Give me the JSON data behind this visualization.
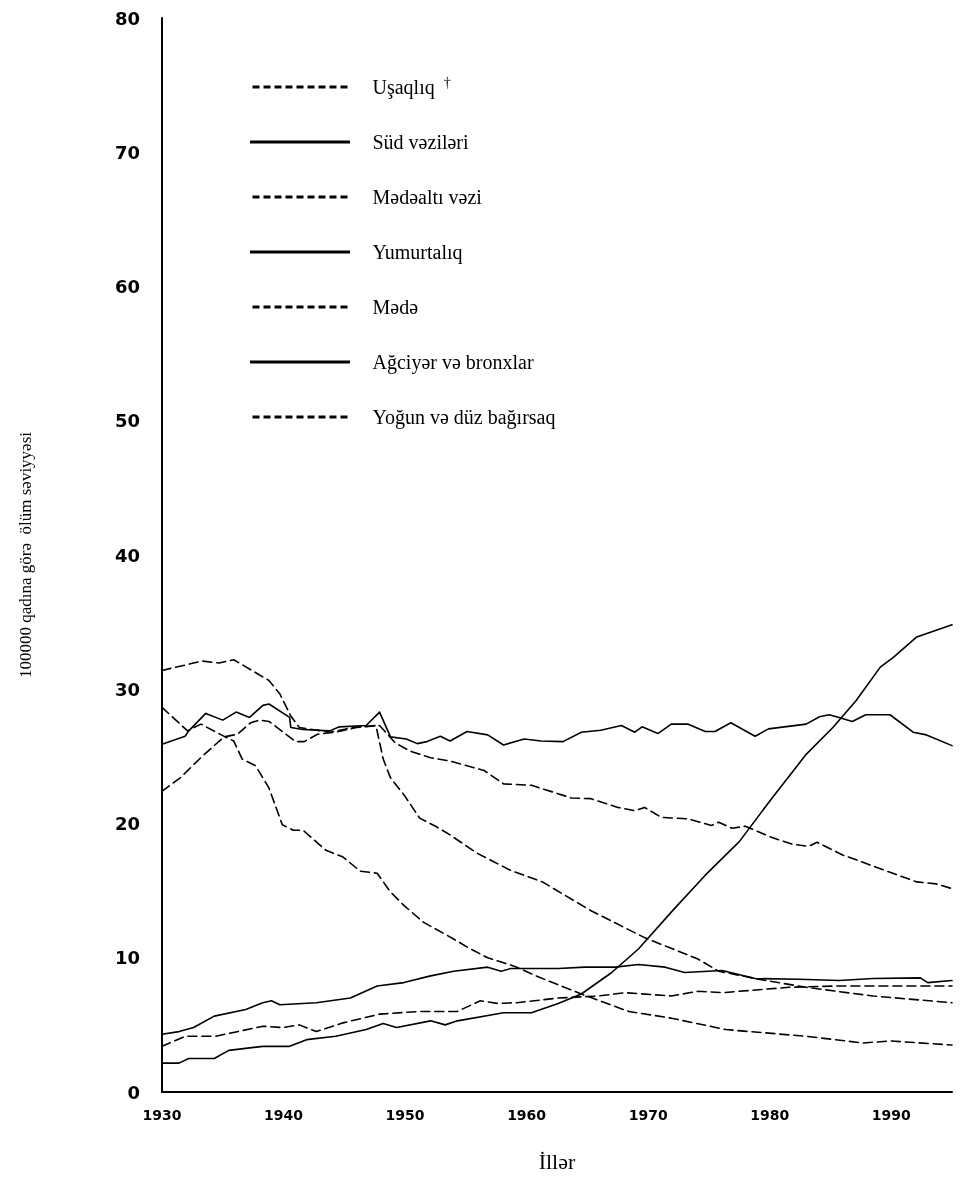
{
  "chart_data": {
    "type": "line",
    "xlabel": "İllər",
    "ylabel": "100000 qadına görə  ölüm səviyyəsi",
    "xlim": [
      1930,
      1995
    ],
    "xticks": [
      1930,
      1940,
      1950,
      1960,
      1970,
      1980,
      1990
    ],
    "ylim": [
      0,
      80
    ],
    "yticks": [
      0,
      10,
      20,
      30,
      40,
      50,
      60,
      70,
      80
    ],
    "grid": false,
    "legend": "top left",
    "marker": "none",
    "series": [
      {
        "name": "Uşaqlıq $^{†}$",
        "color": "#000000",
        "line_style": "dashed",
        "x": [
          1930,
          1933.3,
          1934.7,
          1935.9,
          1938.8,
          1939.7,
          1940.6,
          1941.3,
          1943.8,
          1945.7,
          1947.6,
          1948.2,
          1948.8,
          1949.9,
          1951.2,
          1952.5,
          1953.7,
          1955.9,
          1958.7,
          1961.3,
          1965.3,
          1969.7,
          1974.1,
          1975.8,
          1979.1,
          1983,
          1988.5,
          1995
        ],
        "values": [
          31.4,
          32.1,
          31.95,
          32.2,
          30.65,
          29.65,
          28,
          27.15,
          26.8,
          27.15,
          27.3,
          24.8,
          23.4,
          22.15,
          20.4,
          19.8,
          19.15,
          17.8,
          16.5,
          15.65,
          13.5,
          11.5,
          9.9,
          9,
          8.4,
          7.8,
          7.15,
          6.65
        ]
      },
      {
        "name": "Süd vəziləri",
        "color": "#000000",
        "line_style": "solid",
        "x": [
          1930,
          1931.9,
          1932.2,
          1933.6,
          1935,
          1936.1,
          1937.2,
          1938.3,
          1938.8,
          1940.5,
          1940.6,
          1941.6,
          1943.8,
          1944.6,
          1946.8,
          1947.9,
          1948.8,
          1950.1,
          1951,
          1951.8,
          1952.9,
          1953.7,
          1955.1,
          1956.8,
          1958.1,
          1959.8,
          1961.2,
          1963,
          1964.5,
          1966.1,
          1967.8,
          1968.9,
          1969.5,
          1970.8,
          1971.9,
          1973.3,
          1974.7,
          1975.5,
          1976.8,
          1978.8,
          1979.9,
          1983,
          1984.1,
          1984.9,
          1985.7,
          1986.8,
          1987.9,
          1989.9,
          1991.8,
          1992.9,
          1995
        ],
        "values": [
          25.9,
          26.5,
          26.9,
          28.2,
          27.7,
          28.3,
          27.9,
          28.8,
          28.9,
          27.9,
          27.15,
          27,
          26.9,
          27.2,
          27.3,
          28.3,
          26.45,
          26.3,
          25.95,
          26.1,
          26.5,
          26.15,
          26.85,
          26.6,
          25.85,
          26.3,
          26.15,
          26.1,
          26.8,
          26.95,
          27.3,
          26.8,
          27.2,
          26.7,
          27.4,
          27.4,
          26.85,
          26.85,
          27.5,
          26.5,
          27.05,
          27.4,
          27.95,
          28.1,
          27.9,
          27.6,
          28.1,
          28.1,
          26.8,
          26.6,
          25.8
        ]
      },
      {
        "name": "Mədəaltı vəzi",
        "color": "#000000",
        "line_style": "dashed",
        "x": [
          1930,
          1931.9,
          1934.4,
          1938.3,
          1939.9,
          1941.3,
          1942.7,
          1944.9,
          1947.9,
          1951.2,
          1952.6,
          1954.3,
          1956.2,
          1957.6,
          1959.2,
          1962.6,
          1965.9,
          1968.1,
          1971.9,
          1974.1,
          1976.1,
          1981.6,
          1985.7,
          1995
        ],
        "values": [
          3.4,
          4.15,
          4.15,
          4.9,
          4.8,
          5,
          4.5,
          5.15,
          5.8,
          6,
          6,
          6,
          6.8,
          6.6,
          6.65,
          7,
          7.15,
          7.4,
          7.15,
          7.5,
          7.4,
          7.8,
          7.9,
          7.9
        ]
      },
      {
        "name": "Yumurtalıq",
        "color": "#000000",
        "line_style": "solid",
        "x": [
          1930,
          1931.4,
          1932.6,
          1934.3,
          1936.9,
          1938.3,
          1939,
          1939.7,
          1942.7,
          1945.5,
          1947.7,
          1949.9,
          1952.1,
          1954,
          1956.8,
          1957.9,
          1958.7,
          1962.6,
          1964.8,
          1967.3,
          1969.2,
          1971.4,
          1973,
          1976.1,
          1978.8,
          1982.4,
          1985.7,
          1988.5,
          1992.4,
          1993,
          1995
        ],
        "values": [
          4.3,
          4.5,
          4.8,
          5.65,
          6.15,
          6.65,
          6.8,
          6.5,
          6.65,
          7,
          7.9,
          8.15,
          8.65,
          9,
          9.3,
          9,
          9.2,
          9.2,
          9.3,
          9.3,
          9.5,
          9.3,
          8.9,
          9.05,
          8.45,
          8.4,
          8.3,
          8.45,
          8.5,
          8.15,
          8.3
        ]
      },
      {
        "name": "Mədə",
        "color": "#000000",
        "line_style": "dashed",
        "x": [
          1930,
          1932.1,
          1933.2,
          1935.2,
          1935.9,
          1936.6,
          1937.7,
          1938.8,
          1939.9,
          1940.8,
          1941.6,
          1943.5,
          1944.9,
          1946.3,
          1947.7,
          1948.8,
          1949.9,
          1951.5,
          1953.5,
          1955.4,
          1956.8,
          1959.2,
          1960.9,
          1964.5,
          1968.4,
          1971.9,
          1976.4,
          1983,
          1987.7,
          1989.9,
          1995
        ],
        "values": [
          28.65,
          26.9,
          27.4,
          26.45,
          26.15,
          24.8,
          24.3,
          22.65,
          19.9,
          19.5,
          19.5,
          18,
          17.5,
          16.45,
          16.3,
          14.9,
          13.9,
          12.65,
          11.65,
          10.65,
          10,
          9.3,
          8.6,
          7.3,
          6,
          5.5,
          4.65,
          4.15,
          3.65,
          3.8,
          3.5
        ]
      },
      {
        "name": "Ağciyər və bronxlar",
        "color": "#000000",
        "line_style": "solid",
        "x": [
          1930,
          1931.4,
          1932.2,
          1934.3,
          1935.5,
          1938.3,
          1940.5,
          1941.9,
          1944.3,
          1946.8,
          1948.2,
          1949.3,
          1952.1,
          1953.3,
          1954.3,
          1958.1,
          1960.4,
          1962.6,
          1964.5,
          1967,
          1969.2,
          1971.9,
          1974.7,
          1977.5,
          1980.2,
          1983,
          1985.2,
          1987.1,
          1989.1,
          1990.2,
          1992.1,
          1995
        ],
        "values": [
          2.15,
          2.15,
          2.5,
          2.5,
          3.1,
          3.4,
          3.4,
          3.9,
          4.15,
          4.65,
          5.1,
          4.8,
          5.3,
          5,
          5.3,
          5.9,
          5.9,
          6.6,
          7.3,
          8.9,
          10.65,
          13.4,
          16.15,
          18.65,
          21.9,
          25.15,
          27.15,
          29.15,
          31.65,
          32.4,
          33.9,
          34.8
        ]
      },
      {
        "name": "Yoğun və düz bağırsaq",
        "color": "#000000",
        "line_style": "dashed",
        "x": [
          1930,
          1931.5,
          1933.3,
          1935.1,
          1936.2,
          1937.3,
          1938,
          1938.8,
          1941,
          1941.7,
          1942.8,
          1944.3,
          1946,
          1947.9,
          1949.2,
          1950.4,
          1952.1,
          1953.7,
          1956.5,
          1958.1,
          1960.4,
          1963.7,
          1965.3,
          1967.5,
          1968.9,
          1969.7,
          1971.1,
          1973.3,
          1975.2,
          1975.8,
          1976.9,
          1978,
          1980.2,
          1981.9,
          1983.2,
          1983.9,
          1986,
          1987.4,
          1990.7,
          1992.1,
          1993.7,
          1995
        ],
        "values": [
          22.4,
          23.4,
          25,
          26.45,
          26.65,
          27.5,
          27.7,
          27.6,
          26.1,
          26.1,
          26.65,
          26.8,
          27.15,
          27.3,
          26,
          25.4,
          24.9,
          24.65,
          23.95,
          22.95,
          22.85,
          21.9,
          21.85,
          21.2,
          20.95,
          21.2,
          20.45,
          20.35,
          19.85,
          20.1,
          19.65,
          19.8,
          18.95,
          18.45,
          18.3,
          18.6,
          17.65,
          17.2,
          16.1,
          15.65,
          15.5,
          15.15
        ]
      }
    ]
  }
}
